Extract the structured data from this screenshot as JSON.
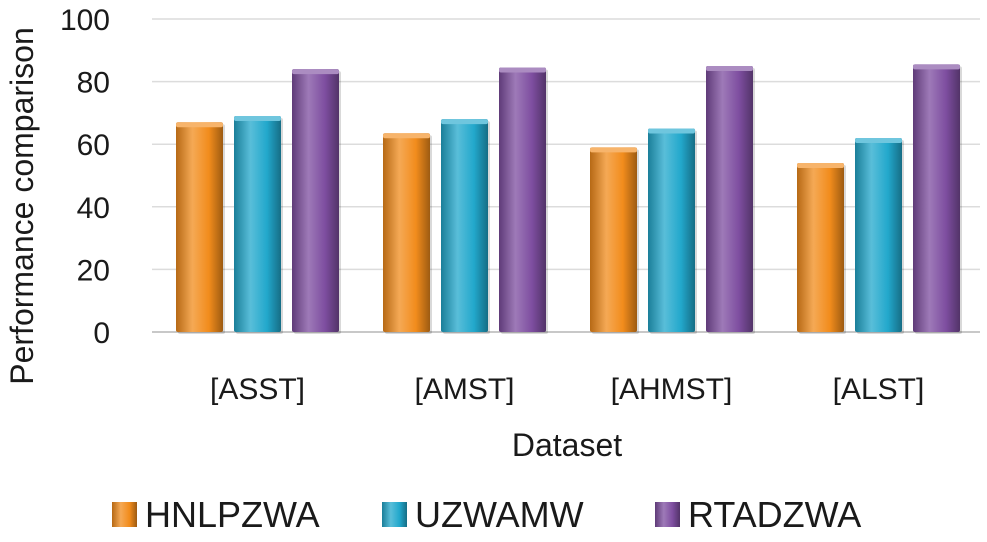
{
  "chart_data": {
    "type": "bar",
    "categories": [
      "[ASST]",
      "[AMST]",
      "[AHMST]",
      "[ALST]"
    ],
    "series": [
      {
        "name": "HNLPZWA",
        "values": [
          67,
          63.5,
          59,
          54
        ],
        "color": "#f28c1c"
      },
      {
        "name": "UZWAMW",
        "values": [
          69,
          68,
          65,
          62
        ],
        "color": "#22a8cc"
      },
      {
        "name": "RTADZWA",
        "values": [
          84,
          84.5,
          85,
          85.5
        ],
        "color": "#7e4ea0"
      }
    ],
    "xlabel": "Dataset",
    "ylabel": "Performance comparison",
    "ylim": [
      0,
      100
    ],
    "yticks": [
      0,
      20,
      40,
      60,
      80,
      100
    ],
    "grid": true,
    "legend": "bottom"
  }
}
